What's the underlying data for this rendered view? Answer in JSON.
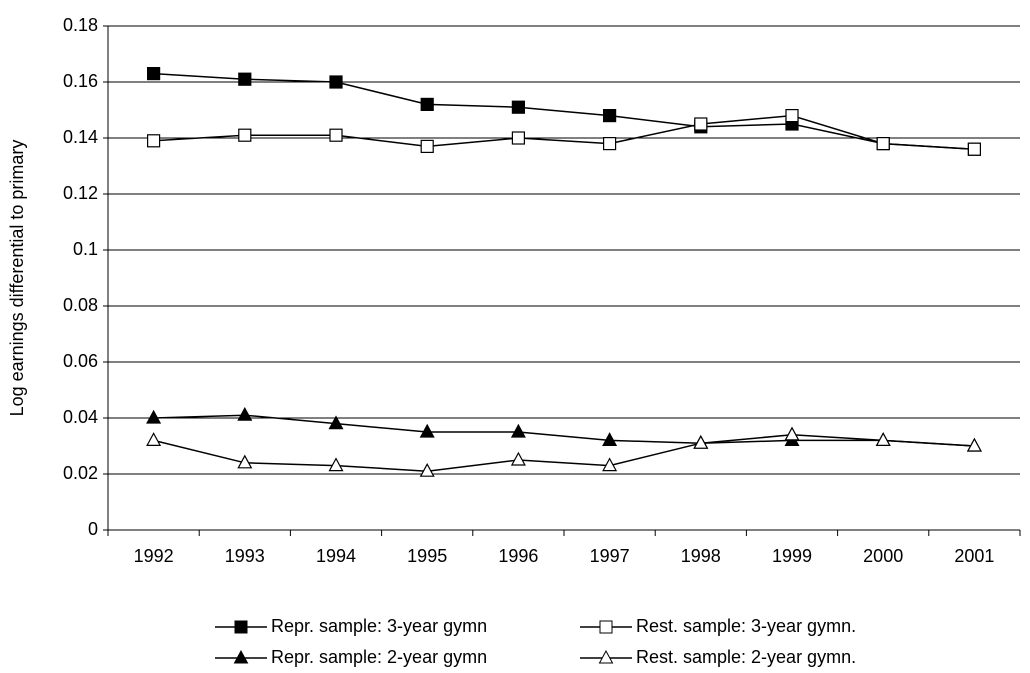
{
  "chart_data": {
    "type": "line",
    "y_label": "Log earnings differential to primary",
    "categories": [
      "1992",
      "1993",
      "1994",
      "1995",
      "1996",
      "1997",
      "1998",
      "1999",
      "2000",
      "2001"
    ],
    "series": [
      {
        "name": "Repr. sample: 3-year gymn",
        "color": "#000000",
        "marker": "square",
        "filled": true,
        "values": [
          0.163,
          0.161,
          0.16,
          0.152,
          0.151,
          0.148,
          0.144,
          0.145,
          0.138,
          0.136
        ]
      },
      {
        "name": "Rest. sample: 3-year gymn.",
        "color": "#000000",
        "marker": "square",
        "filled": false,
        "values": [
          0.139,
          0.141,
          0.141,
          0.137,
          0.14,
          0.138,
          0.145,
          0.148,
          0.138,
          0.136
        ]
      },
      {
        "name": "Repr. sample: 2-year gymn",
        "color": "#000000",
        "marker": "triangle",
        "filled": true,
        "values": [
          0.04,
          0.041,
          0.038,
          0.035,
          0.035,
          0.032,
          0.031,
          0.032,
          0.032,
          0.03
        ]
      },
      {
        "name": "Rest. sample: 2-year gymn.",
        "color": "#000000",
        "marker": "triangle",
        "filled": false,
        "values": [
          0.032,
          0.024,
          0.023,
          0.021,
          0.025,
          0.023,
          0.031,
          0.034,
          0.032,
          0.03
        ]
      }
    ],
    "ylim": [
      0,
      0.18
    ],
    "yticks": [
      0,
      0.02,
      0.04,
      0.06,
      0.08,
      0.1,
      0.12,
      0.14,
      0.16,
      0.18
    ],
    "grid": true,
    "legend": "bottom"
  }
}
